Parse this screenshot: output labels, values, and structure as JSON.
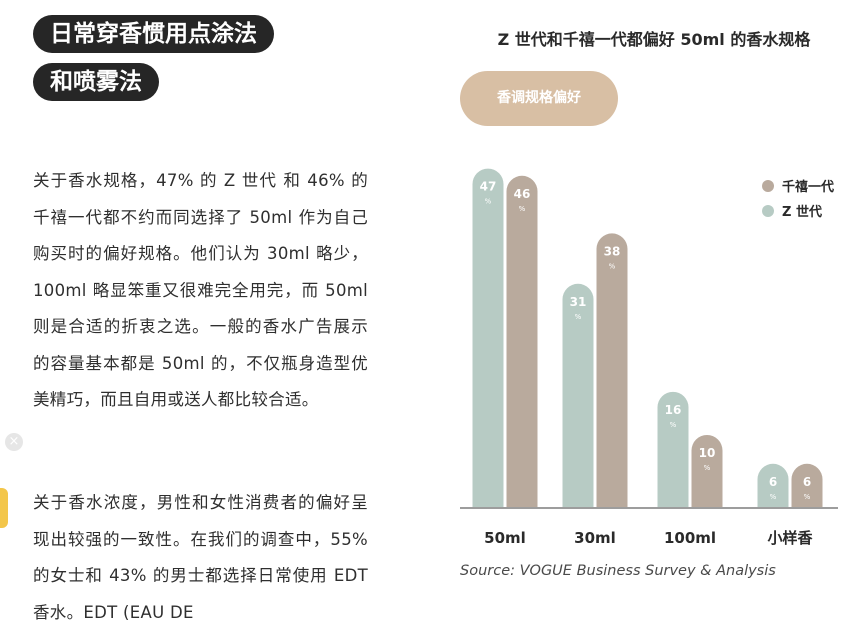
{
  "article": {
    "title_line_1": "日常穿香惯用点涂法",
    "title_line_2": "和喷雾法",
    "paragraph_1": "关于香水规格，47% 的 Z 世代 和 46% 的千禧一代都不约而同选择了 50ml 作为自己购买时的偏好规格。他们认为 30ml 略少，100ml 略显笨重又很难完全用完，而 50ml 则是合适的折衷之选。一般的香水广告展示的容量基本都是 50ml 的，不仅瓶身造型优美精巧，而且自用或送人都比较合适。",
    "paragraph_2": "关于香水浓度，男性和女性消费者的偏好呈现出较强的一致性。在我们的调查中，55% 的女士和 43% 的男士都选择日常使用 EDT 香水。EDT (EAU DE"
  },
  "side": {
    "close_glyph": "×"
  },
  "chart_data": {
    "type": "bar",
    "title": "Z 世代和千禧一代都偏好 50ml 的香水规格",
    "category_label": "香调规格偏好",
    "categories": [
      "50ml",
      "30ml",
      "100ml",
      "小样香"
    ],
    "series": [
      {
        "name": "Z 世代",
        "values": [
          47,
          31,
          16,
          6
        ],
        "color": "#b7cbc4"
      },
      {
        "name": "千禧一代",
        "values": [
          46,
          38,
          10,
          6
        ],
        "color": "#b9aa9d"
      }
    ],
    "ylim": [
      0,
      50
    ],
    "unit_mark": "%",
    "legend_position": "top-right",
    "xlabel": "",
    "ylabel": "",
    "source": "Source: VOGUE Business Survey & Analysis"
  }
}
